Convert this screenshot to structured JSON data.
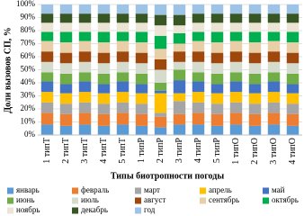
{
  "chart_data": {
    "type": "stacked_bar_100",
    "x_label": "Типы биотропности погоды",
    "y_label": "Доли вызовов СП, %",
    "categories": [
      "1 типТ",
      "2 типТ",
      "3 типТ",
      "4 типТ",
      "5 типТ",
      "1 типР",
      "2 типР",
      "3 типР",
      "4 типР",
      "5 типР",
      "1 типО",
      "2 типО",
      "3 типО",
      "4 типО"
    ],
    "ylim": [
      0,
      100
    ],
    "yticks": [
      {
        "value": 0,
        "label": "0%"
      },
      {
        "value": 10,
        "label": "10%"
      },
      {
        "value": 20,
        "label": "20%"
      },
      {
        "value": 30,
        "label": "30%"
      },
      {
        "value": 40,
        "label": "40%"
      },
      {
        "value": 50,
        "label": "50%"
      },
      {
        "value": 60,
        "label": "60%"
      },
      {
        "value": 70,
        "label": "70%"
      },
      {
        "value": 80,
        "label": "80%"
      },
      {
        "value": 90,
        "label": "90%"
      },
      {
        "value": 100,
        "label": "100%"
      }
    ],
    "series": [
      {
        "name": "январь",
        "color": "#5b9bd5",
        "values": [
          8,
          7,
          8,
          7,
          8,
          7,
          6,
          8,
          8,
          7,
          8,
          7,
          8,
          7
        ]
      },
      {
        "name": "февраль",
        "color": "#ed7d31",
        "values": [
          9,
          9,
          9,
          9,
          9,
          9,
          8,
          8,
          9,
          9,
          9,
          9,
          9,
          9
        ]
      },
      {
        "name": "март",
        "color": "#a5a5a5",
        "values": [
          8,
          8,
          8,
          8,
          8,
          8,
          3,
          10,
          8,
          8,
          8,
          8,
          8,
          8
        ]
      },
      {
        "name": "апрель",
        "color": "#ffc000",
        "values": [
          8,
          8,
          8,
          8,
          8,
          8,
          15,
          6,
          8,
          8,
          8,
          8,
          8,
          8
        ]
      },
      {
        "name": "май",
        "color": "#4472c4",
        "values": [
          8,
          7,
          8,
          7,
          8,
          7,
          2,
          10,
          8,
          7,
          8,
          7,
          8,
          7
        ]
      },
      {
        "name": "июнь",
        "color": "#70ad47",
        "values": [
          7,
          8,
          7,
          8,
          7,
          8,
          6,
          8,
          7,
          8,
          7,
          8,
          7,
          8
        ]
      },
      {
        "name": "июль",
        "color": "#d6dccd",
        "values": [
          8,
          8,
          8,
          8,
          8,
          8,
          10,
          6,
          8,
          8,
          8,
          8,
          8,
          8
        ]
      },
      {
        "name": "август",
        "color": "#9e480e",
        "values": [
          8,
          8,
          8,
          8,
          8,
          8,
          8,
          8,
          8,
          8,
          8,
          8,
          8,
          8
        ]
      },
      {
        "name": "сентябрь",
        "color": "#e8cfa8",
        "values": [
          8,
          8,
          8,
          8,
          8,
          8,
          8,
          6,
          8,
          8,
          8,
          8,
          8,
          8
        ]
      },
      {
        "name": "октябрь",
        "color": "#00b050",
        "values": [
          7,
          8,
          7,
          8,
          7,
          8,
          10,
          8,
          7,
          8,
          7,
          8,
          7,
          8
        ]
      },
      {
        "name": "ноябрь",
        "color": "#ece4d4",
        "values": [
          7,
          7,
          7,
          7,
          7,
          7,
          8,
          6,
          7,
          7,
          7,
          7,
          7,
          7
        ]
      },
      {
        "name": "декабрь",
        "color": "#375623",
        "values": [
          7,
          7,
          7,
          7,
          7,
          7,
          8,
          8,
          7,
          7,
          7,
          7,
          7,
          7
        ]
      },
      {
        "name": "год",
        "color": "#9dc3e6",
        "values": [
          7,
          7,
          7,
          7,
          7,
          7,
          8,
          8,
          7,
          7,
          7,
          7,
          7,
          7
        ]
      }
    ],
    "grid": true,
    "legend": "bottom"
  }
}
